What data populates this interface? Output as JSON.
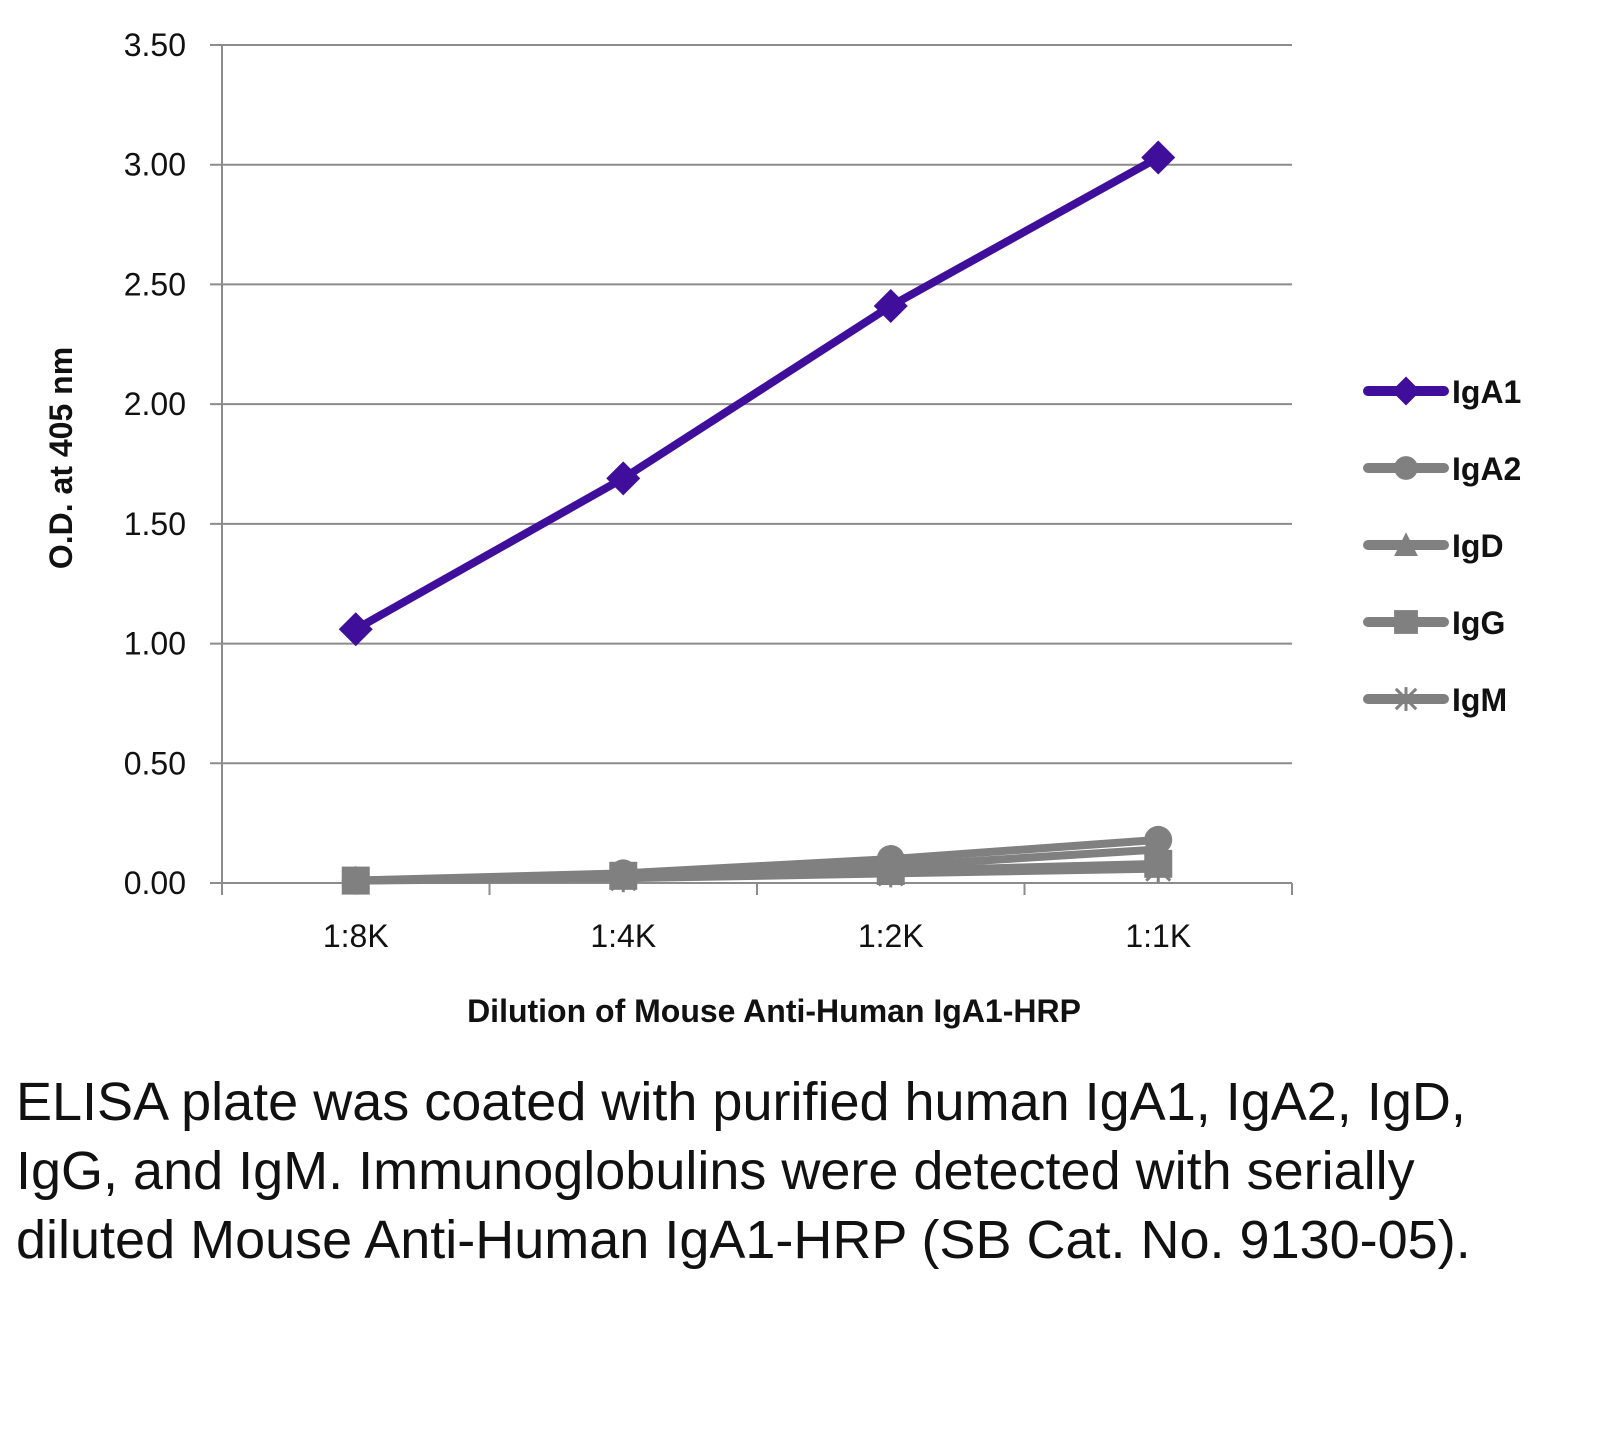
{
  "chart_data": {
    "type": "line",
    "title": "",
    "xlabel": "Dilution of Mouse Anti-Human IgA1-HRP",
    "ylabel": "O.D. at 405 nm",
    "categories": [
      "1:8K",
      "1:4K",
      "1:2K",
      "1:1K"
    ],
    "ylim": [
      0,
      3.5
    ],
    "yticks": [
      "0.00",
      "0.50",
      "1.00",
      "1.50",
      "2.00",
      "2.50",
      "3.00",
      "3.50"
    ],
    "grid": true,
    "legend_position": "right",
    "series": [
      {
        "name": "IgA1",
        "marker": "diamond",
        "color": "#3f0f9c",
        "values": [
          1.06,
          1.69,
          2.41,
          3.03
        ]
      },
      {
        "name": "IgA2",
        "marker": "circle",
        "color": "#808080",
        "values": [
          0.01,
          0.04,
          0.1,
          0.18
        ]
      },
      {
        "name": "IgD",
        "marker": "triangle",
        "color": "#808080",
        "values": [
          0.01,
          0.03,
          0.07,
          0.14
        ]
      },
      {
        "name": "IgG",
        "marker": "square",
        "color": "#808080",
        "values": [
          0.01,
          0.03,
          0.05,
          0.08
        ]
      },
      {
        "name": "IgM",
        "marker": "star",
        "color": "#808080",
        "values": [
          0.01,
          0.02,
          0.04,
          0.06
        ]
      }
    ]
  },
  "caption": "ELISA plate was coated with purified human IgA1, IgA2, IgD, IgG, and IgM. Immunoglobulins were detected with serially diluted Mouse Anti-Human IgA1-HRP (SB Cat. No. 9130-05)."
}
